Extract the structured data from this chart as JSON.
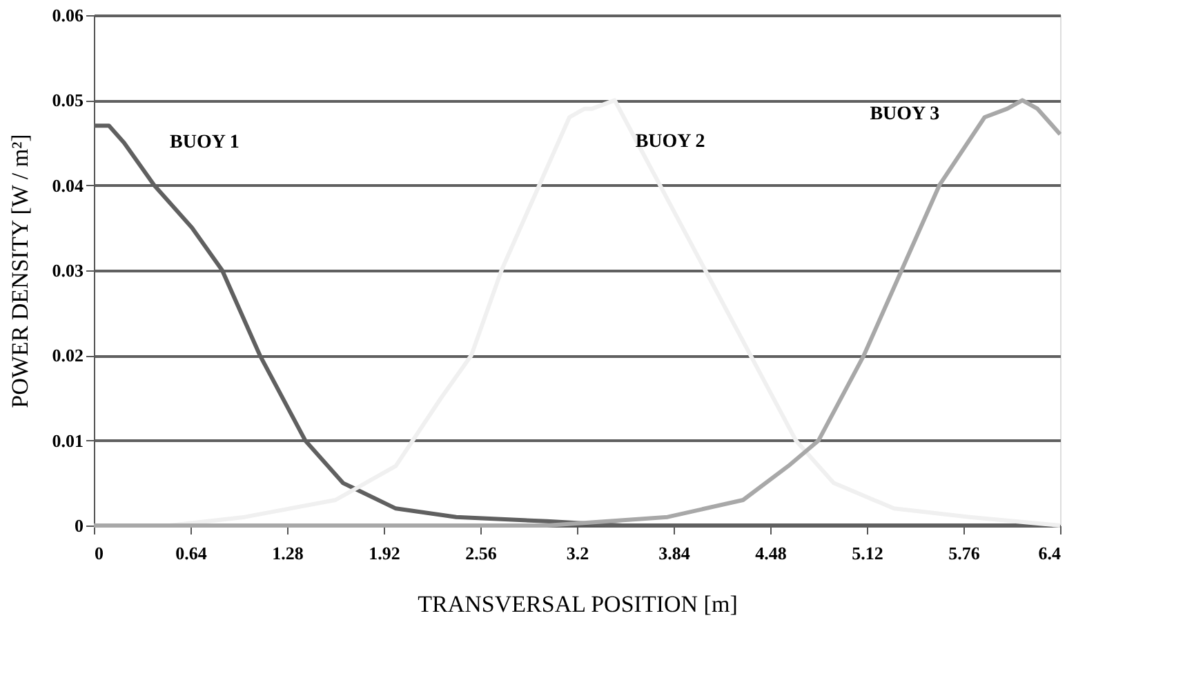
{
  "chart_data": {
    "type": "line",
    "xlabel": "TRANSVERSAL POSITION [m]",
    "ylabel": "POWER DENSITY [W / m²]",
    "xlim": [
      0,
      6.4
    ],
    "xticks": [
      0,
      0.64,
      1.28,
      1.92,
      2.56,
      3.2,
      3.84,
      4.48,
      5.12,
      5.76,
      6.4
    ],
    "ylim": [
      0,
      0.06
    ],
    "yticks": [
      0,
      0.01,
      0.02,
      0.03,
      0.04,
      0.05,
      0.06
    ],
    "grid": "y",
    "legend": false,
    "marker": "none",
    "line_style": "solid",
    "series": [
      {
        "name": "BUOY 1",
        "color": "#606060",
        "x": [
          0,
          0.1,
          0.2,
          0.4,
          0.65,
          0.85,
          1.1,
          1.4,
          1.65,
          2.0,
          2.4,
          3.0,
          3.5,
          4.5,
          5.5,
          6.4
        ],
        "values": [
          0.047,
          0.047,
          0.045,
          0.04,
          0.035,
          0.03,
          0.02,
          0.01,
          0.005,
          0.002,
          0.001,
          0.0005,
          0,
          0,
          0,
          0
        ]
      },
      {
        "name": "BUOY 2",
        "color": "#f0f0f0",
        "x": [
          0,
          0.5,
          1.0,
          1.6,
          2.0,
          2.3,
          2.5,
          2.7,
          2.95,
          3.15,
          3.25,
          3.3,
          3.45,
          3.6,
          3.75,
          4.05,
          4.35,
          4.65,
          4.9,
          5.3,
          5.8,
          6.4
        ],
        "values": [
          0,
          0,
          0.001,
          0.003,
          0.007,
          0.015,
          0.02,
          0.03,
          0.04,
          0.048,
          0.049,
          0.049,
          0.05,
          0.045,
          0.04,
          0.03,
          0.02,
          0.01,
          0.005,
          0.002,
          0.001,
          0
        ]
      },
      {
        "name": "BUOY 3",
        "color": "#a8a8a8",
        "x": [
          0,
          1.5,
          3.0,
          3.8,
          4.3,
          4.6,
          4.8,
          5.1,
          5.35,
          5.6,
          5.9,
          6.05,
          6.15,
          6.25,
          6.4
        ],
        "values": [
          0,
          0,
          0,
          0.001,
          0.003,
          0.007,
          0.01,
          0.02,
          0.03,
          0.04,
          0.048,
          0.049,
          0.05,
          0.049,
          0.046
        ]
      }
    ]
  }
}
